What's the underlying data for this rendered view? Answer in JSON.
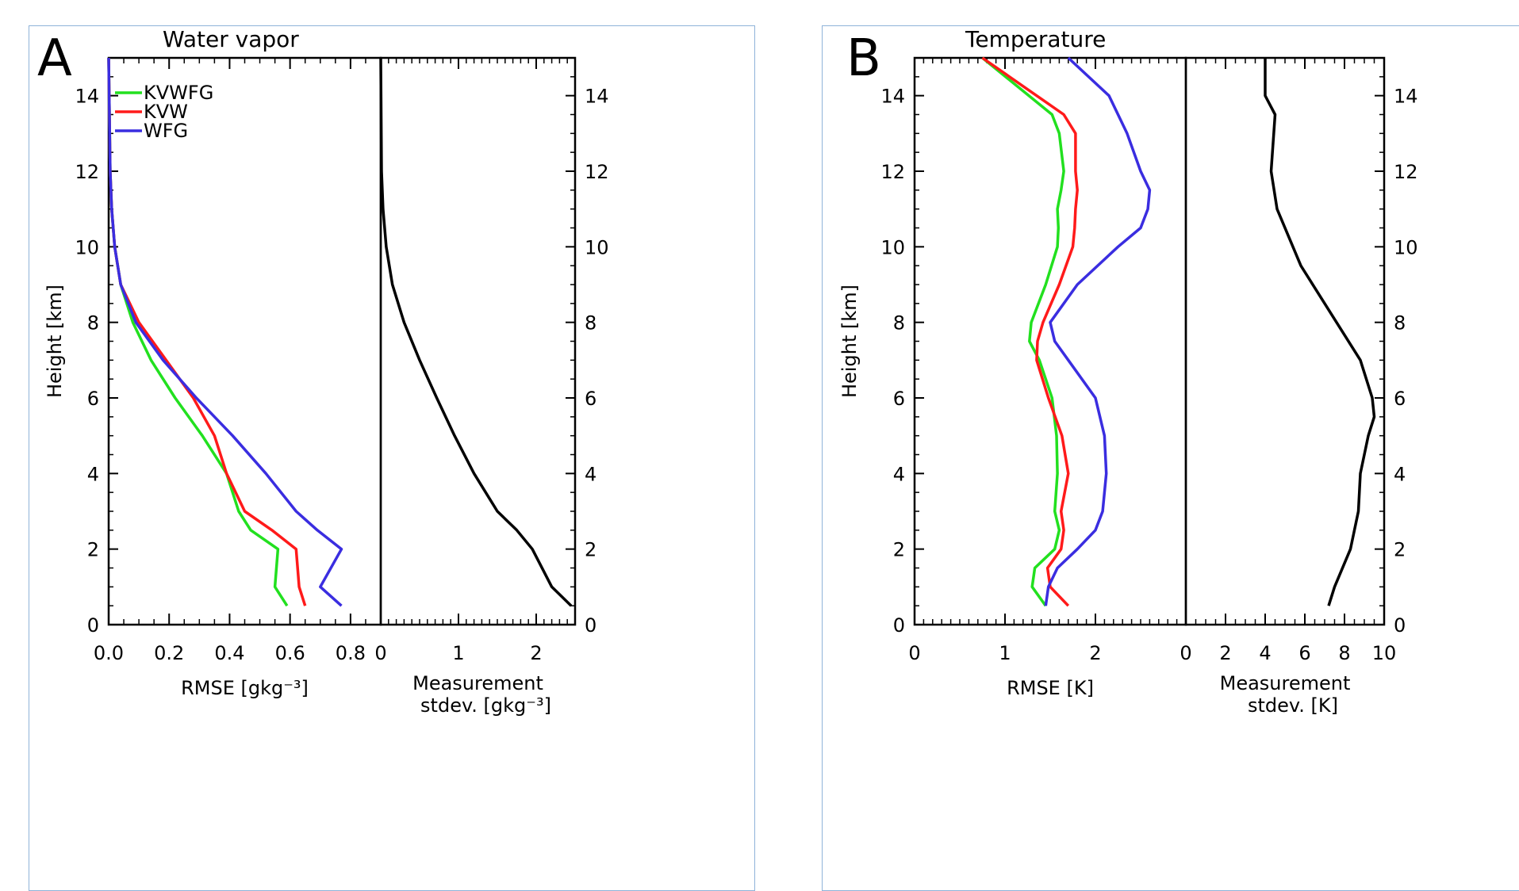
{
  "chart_data": [
    {
      "type": "line",
      "panel_letter": "A",
      "title": "Water vapor",
      "left": {
        "xlabel": "RMSE [gkg⁻³]",
        "ylabel": "Height [km]",
        "xlim": [
          0,
          0.9
        ],
        "ylim": [
          0,
          15
        ],
        "xticks": [
          "0.0",
          "0.2",
          "0.4",
          "0.6",
          "0.8"
        ],
        "yticks": [
          "0",
          "2",
          "4",
          "6",
          "8",
          "10",
          "12",
          "14"
        ],
        "legend_position": "top-left",
        "series": [
          {
            "name": "KVWFG",
            "color": "#22e01f",
            "x": [
              0.59,
              0.55,
              0.56,
              0.47,
              0.43,
              0.39,
              0.31,
              0.22,
              0.14,
              0.08,
              0.04,
              0.02,
              0.01,
              0.005,
              0.0
            ],
            "y": [
              0.5,
              1.0,
              2.0,
              2.5,
              3.0,
              4.0,
              5.0,
              6.0,
              7.0,
              8.0,
              9.0,
              10.0,
              11.0,
              12.0,
              15.0
            ]
          },
          {
            "name": "KVW",
            "color": "#ff1a1a",
            "x": [
              0.65,
              0.63,
              0.62,
              0.54,
              0.45,
              0.39,
              0.35,
              0.28,
              0.19,
              0.1,
              0.04,
              0.02,
              0.01,
              0.005,
              0.0
            ],
            "y": [
              0.5,
              1.0,
              2.0,
              2.5,
              3.0,
              4.0,
              5.0,
              6.0,
              7.0,
              8.0,
              9.0,
              10.0,
              11.0,
              12.0,
              15.0
            ]
          },
          {
            "name": "WFG",
            "color": "#3a2de0",
            "x": [
              0.77,
              0.7,
              0.77,
              0.69,
              0.62,
              0.52,
              0.41,
              0.29,
              0.18,
              0.09,
              0.04,
              0.02,
              0.01,
              0.005,
              0.0
            ],
            "y": [
              0.5,
              1.0,
              2.0,
              2.5,
              3.0,
              4.0,
              5.0,
              6.0,
              7.0,
              8.0,
              9.0,
              10.0,
              11.0,
              12.0,
              15.0
            ]
          }
        ]
      },
      "right": {
        "xlabel_line1": "Measurement",
        "xlabel_line2": "stdev. [gkg⁻³]",
        "xlim": [
          0,
          2.5
        ],
        "ylim": [
          0,
          15
        ],
        "xticks": [
          "0",
          "1",
          "2"
        ],
        "yticks": [
          "0",
          "2",
          "4",
          "6",
          "8",
          "10",
          "12",
          "14"
        ],
        "series": [
          {
            "name": "",
            "color": "#000000",
            "x": [
              2.45,
              2.2,
              1.95,
              1.75,
              1.5,
              1.2,
              0.95,
              0.72,
              0.5,
              0.3,
              0.15,
              0.07,
              0.03,
              0.01,
              0.0
            ],
            "y": [
              0.5,
              1.0,
              2.0,
              2.5,
              3.0,
              4.0,
              5.0,
              6.0,
              7.0,
              8.0,
              9.0,
              10.0,
              11.0,
              12.0,
              15.0
            ]
          }
        ]
      }
    },
    {
      "type": "line",
      "panel_letter": "B",
      "title": "Temperature",
      "left": {
        "xlabel": "RMSE [K]",
        "ylabel": "Height [km]",
        "xlim": [
          0,
          3
        ],
        "ylim": [
          0,
          15
        ],
        "xticks": [
          "0",
          "1",
          "2"
        ],
        "yticks": [
          "0",
          "2",
          "4",
          "6",
          "8",
          "10",
          "12",
          "14"
        ],
        "series": [
          {
            "name": "KVWFG",
            "color": "#22e01f",
            "x": [
              1.45,
              1.3,
              1.33,
              1.55,
              1.6,
              1.55,
              1.58,
              1.57,
              1.52,
              1.38,
              1.27,
              1.29,
              1.45,
              1.58,
              1.59,
              1.58,
              1.62,
              1.65,
              1.6,
              1.52,
              0.75
            ],
            "y": [
              0.5,
              1.0,
              1.5,
              2.0,
              2.5,
              3.0,
              4.0,
              5.0,
              6.0,
              7.0,
              7.5,
              8.0,
              9.0,
              10.0,
              10.5,
              11.0,
              11.5,
              12.0,
              13.0,
              13.5,
              15.0
            ]
          },
          {
            "name": "KVW",
            "color": "#ff1a1a",
            "x": [
              1.7,
              1.5,
              1.47,
              1.62,
              1.65,
              1.62,
              1.7,
              1.63,
              1.48,
              1.35,
              1.36,
              1.42,
              1.6,
              1.75,
              1.77,
              1.78,
              1.8,
              1.78,
              1.78,
              1.65,
              0.75
            ],
            "y": [
              0.5,
              1.0,
              1.5,
              2.0,
              2.5,
              3.0,
              4.0,
              5.0,
              6.0,
              7.0,
              7.5,
              8.0,
              9.0,
              10.0,
              10.5,
              11.0,
              11.5,
              12.0,
              13.0,
              13.5,
              15.0
            ]
          },
          {
            "name": "WFG",
            "color": "#3a2de0",
            "x": [
              1.45,
              1.48,
              1.58,
              1.8,
              2.0,
              2.08,
              2.12,
              2.1,
              2.0,
              1.7,
              1.55,
              1.5,
              1.8,
              2.25,
              2.5,
              2.58,
              2.6,
              2.5,
              2.35,
              2.15,
              1.7
            ],
            "y": [
              0.5,
              1.0,
              1.5,
              2.0,
              2.5,
              3.0,
              4.0,
              5.0,
              6.0,
              7.0,
              7.5,
              8.0,
              9.0,
              10.0,
              10.5,
              11.0,
              11.5,
              12.0,
              13.0,
              14.0,
              15.0
            ]
          }
        ]
      },
      "right": {
        "xlabel_line1": "Measurement",
        "xlabel_line2": "stdev. [K]",
        "xlim": [
          0,
          10
        ],
        "ylim": [
          0,
          15
        ],
        "xticks": [
          "0",
          "2",
          "4",
          "6",
          "8",
          "10"
        ],
        "yticks": [
          "0",
          "2",
          "4",
          "6",
          "8",
          "10",
          "12",
          "14"
        ],
        "series": [
          {
            "name": "",
            "color": "#000000",
            "x": [
              7.2,
              7.5,
              8.3,
              8.7,
              8.8,
              9.2,
              9.5,
              9.4,
              8.8,
              7.6,
              5.8,
              4.6,
              4.3,
              4.5,
              4.0,
              4.0
            ],
            "y": [
              0.5,
              1.0,
              2.0,
              3.0,
              4.0,
              5.0,
              5.5,
              6.0,
              7.0,
              8.0,
              9.5,
              11.0,
              12.0,
              13.5,
              14.0,
              15.0
            ]
          }
        ]
      }
    }
  ]
}
